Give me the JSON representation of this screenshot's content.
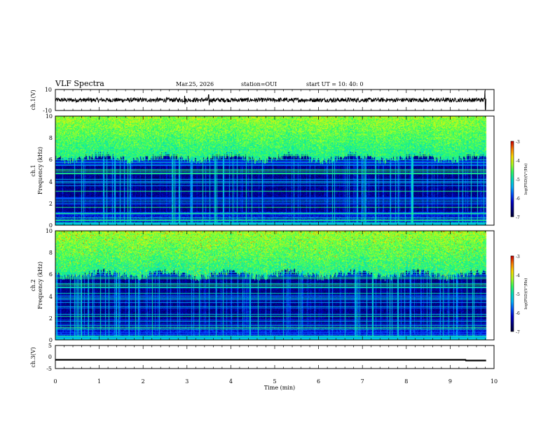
{
  "header": {
    "title": "VLF Spectra",
    "date": "Mar.25, 2026",
    "station": "station=OUI",
    "start": "start  UT =   10: 40: 0"
  },
  "colors": {
    "background": "#ffffff",
    "spectrogram_colormap": [
      "#000033",
      "#00007a",
      "#0000c8",
      "#0050ff",
      "#00b4ff",
      "#00e0c0",
      "#30ff60",
      "#b0ff20",
      "#ffe000",
      "#ff8000",
      "#d00000",
      "#ffffff"
    ]
  },
  "chart_data": [
    {
      "type": "line",
      "name": "ch1-waveform",
      "ylabel": "ch.1(V)",
      "ylim": [
        -10,
        10
      ],
      "yticks": [
        "10",
        "-10"
      ],
      "x": [
        0,
        10
      ],
      "series": [
        {
          "name": "ch.1",
          "mean": 0.0,
          "amplitude_typical": 2,
          "spikes": [
            {
              "t": 2.95,
              "v": 4
            },
            {
              "t": 3.5,
              "v": 5
            },
            {
              "t": 9.8,
              "v": 9
            }
          ]
        }
      ]
    },
    {
      "type": "heatmap",
      "name": "ch1-spectrogram",
      "ylabel_line1": "ch.1",
      "ylabel_line2": "Frequency (kHz)",
      "ylim": [
        0,
        10
      ],
      "yticks": [
        "0",
        "2",
        "4",
        "6",
        "8",
        "10"
      ],
      "xlim": [
        0,
        10
      ],
      "data_end_min": 9.82,
      "noise_floor_khz": 6.2,
      "colorbar": {
        "label": "log(PSD)(V²/Hz)",
        "range": [
          -7,
          -3
        ],
        "ticks": [
          "-3",
          "-4",
          "-5",
          "-6",
          "-7"
        ]
      }
    },
    {
      "type": "heatmap",
      "name": "ch2-spectrogram",
      "ylabel_line1": "ch.2",
      "ylabel_line2": "Frequency (kHz)",
      "ylim": [
        0,
        10
      ],
      "yticks": [
        "0",
        "2",
        "4",
        "6",
        "8",
        "10"
      ],
      "xlim": [
        0,
        10
      ],
      "data_end_min": 9.82,
      "noise_floor_khz": 6.0,
      "colorbar": {
        "label": "log(PSD)(V²/Hz)",
        "range": [
          -7,
          -3
        ],
        "ticks": [
          "-3",
          "-4",
          "-5",
          "-6",
          "-7"
        ]
      }
    },
    {
      "type": "line",
      "name": "ch3-voltage",
      "ylabel": "ch.3(V)",
      "ylim": [
        -5,
        5
      ],
      "yticks": [
        "5",
        "0",
        "-5"
      ],
      "series": [
        {
          "name": "ch.3",
          "x": [
            0,
            9.35,
            9.36,
            9.82
          ],
          "y": [
            -1.2,
            -1.2,
            -1.5,
            -1.5
          ]
        }
      ]
    }
  ],
  "xaxis": {
    "label": "Time (min)",
    "ticks": [
      "0",
      "1",
      "2",
      "3",
      "4",
      "5",
      "6",
      "7",
      "8",
      "9",
      "10"
    ]
  }
}
